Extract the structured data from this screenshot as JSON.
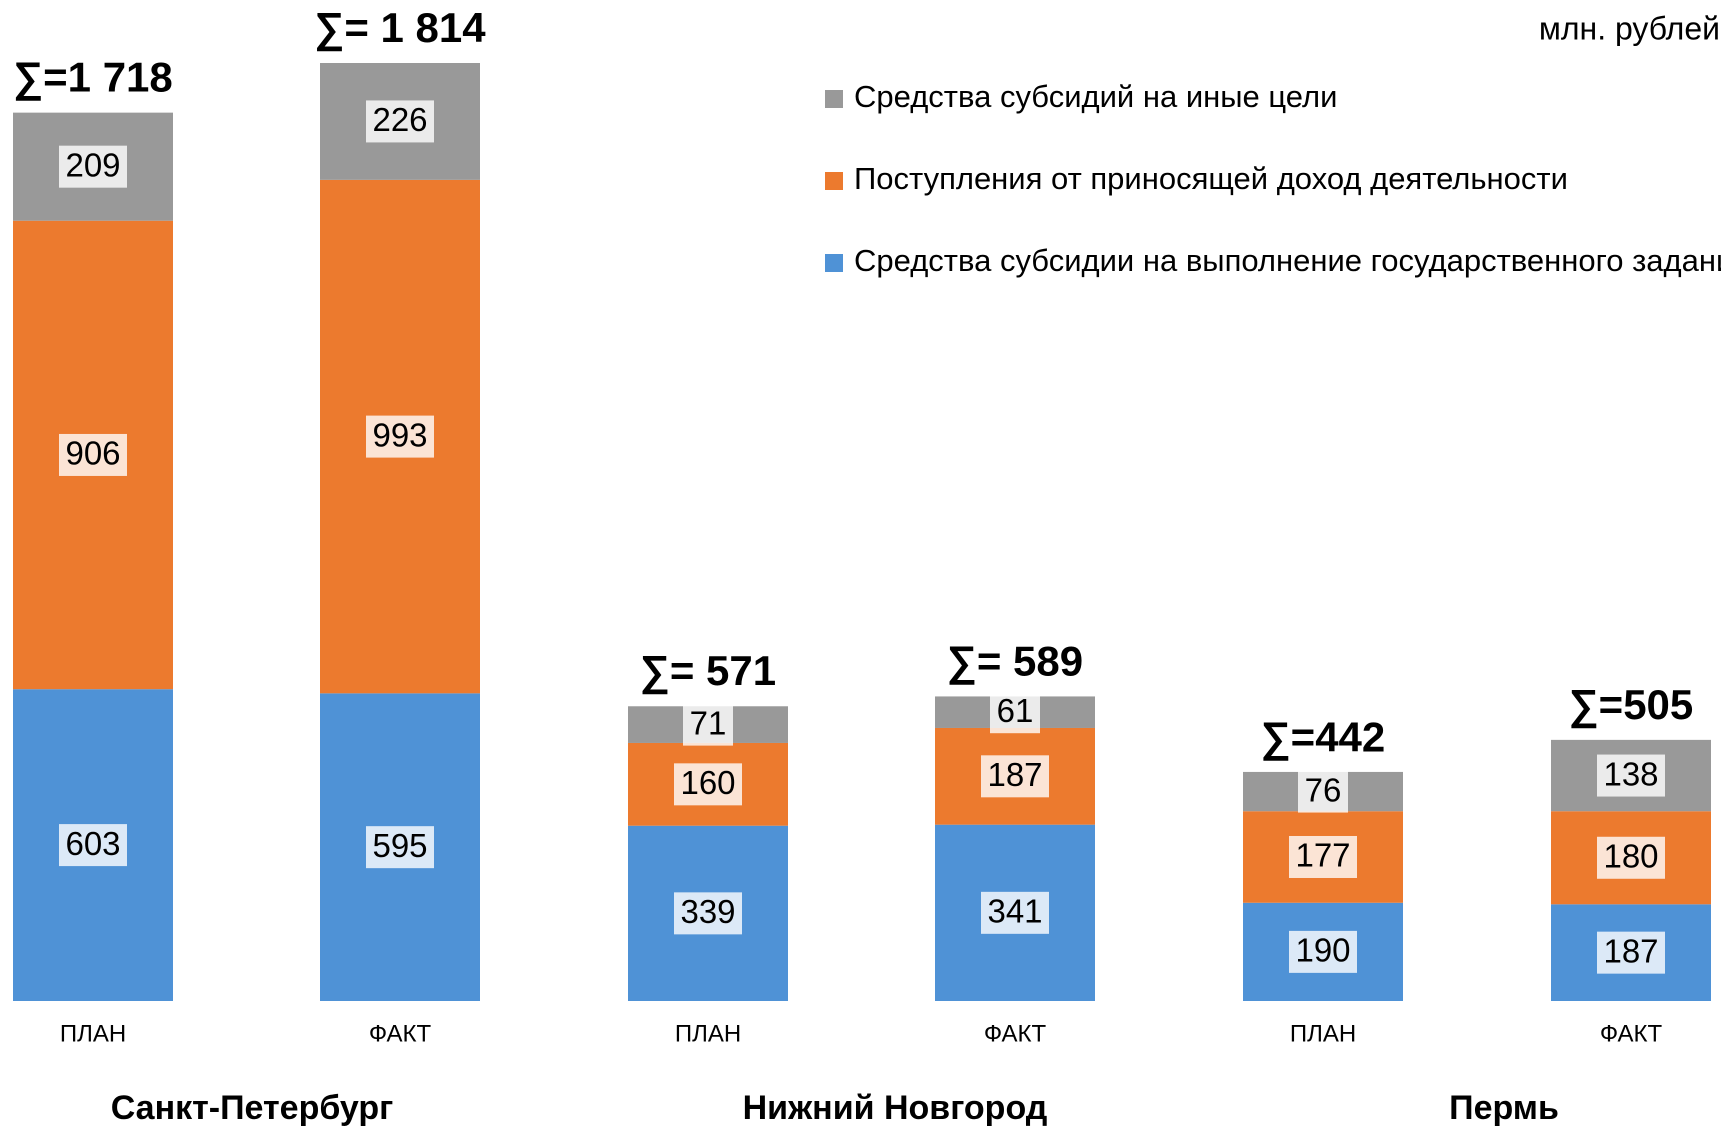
{
  "chart_data": {
    "type": "stacked_bar",
    "unit_label": "млн. рублей",
    "categories": [
      "ПЛАН",
      "ФАКТ",
      "ПЛАН",
      "ФАКТ",
      "ПЛАН",
      "ФАКТ"
    ],
    "groups": [
      "Санкт-Петербург",
      "Нижний Новгород",
      "Пермь"
    ],
    "series": [
      {
        "name": "Средства субсидии на выполнение государственного задания",
        "color": "#4f92d6",
        "values": [
          603,
          595,
          339,
          341,
          190,
          187
        ]
      },
      {
        "name": "Поступления от приносящей доход деятельности",
        "color": "#ec7a2e",
        "values": [
          906,
          993,
          160,
          187,
          177,
          180
        ]
      },
      {
        "name": "Средства субсидий на иные цели",
        "color": "#999999",
        "values": [
          209,
          226,
          71,
          61,
          76,
          138
        ]
      }
    ],
    "totals": [
      1718,
      1814,
      571,
      589,
      442,
      505
    ],
    "total_labels": [
      "∑=1 718",
      "∑= 1 814",
      "∑= 571",
      "∑= 589",
      "∑=442",
      "∑=505"
    ],
    "total_colors": [
      "#1f4e8c",
      "#e8131b",
      "#1f4e8c",
      "#e8131b",
      "#1f4e8c",
      "#e8131b"
    ]
  }
}
